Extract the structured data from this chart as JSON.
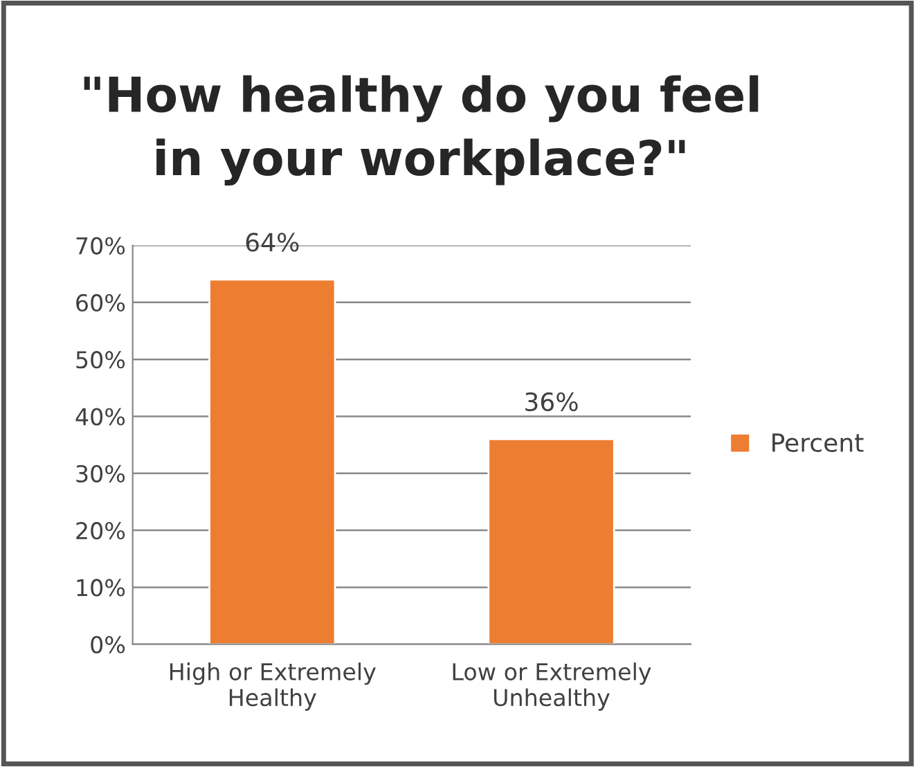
{
  "chart_data": {
    "type": "bar",
    "title": "\"How healthy do you feel\nin your workplace?\"",
    "categories": [
      "High or Extremely\nHealthy",
      "Low or Extremely\nUnhealthy"
    ],
    "series": [
      {
        "name": "Percent",
        "color": "#ed7d31",
        "values": [
          64,
          36
        ],
        "value_labels": [
          "64%",
          "36%"
        ]
      }
    ],
    "ylim": [
      0,
      70
    ],
    "yticks": [
      {
        "value": 0,
        "label": "0%"
      },
      {
        "value": 10,
        "label": "10%"
      },
      {
        "value": 20,
        "label": "20%"
      },
      {
        "value": 30,
        "label": "30%"
      },
      {
        "value": 40,
        "label": "40%"
      },
      {
        "value": 50,
        "label": "50%"
      },
      {
        "value": 60,
        "label": "60%"
      },
      {
        "value": 70,
        "label": "70%"
      }
    ],
    "grid": "y",
    "legend": "right"
  }
}
